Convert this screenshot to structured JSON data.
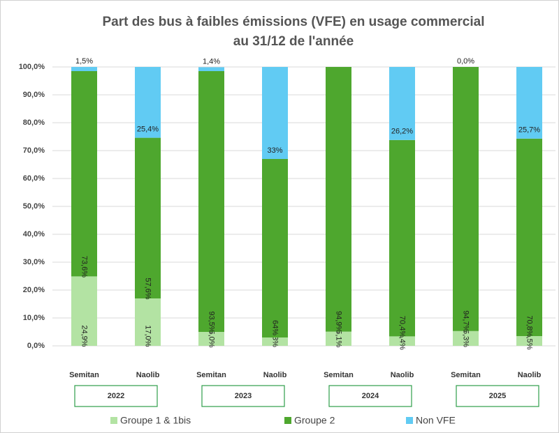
{
  "chart_data": {
    "type": "stacked_bar",
    "title": [
      "Part des bus à faibles émissions (VFE) en usage commercial",
      "au 31/12 de l'année"
    ],
    "categories": [
      "Semitan",
      "Naolib",
      "Semitan",
      "Naolib",
      "Semitan",
      "Naolib",
      "Semitan",
      "Naolib"
    ],
    "groups": [
      "2022",
      "2023",
      "2024",
      "2025"
    ],
    "series": [
      {
        "name": "Groupe 1 & 1bis",
        "color": "#b3e3a3",
        "values": [
          24.9,
          17.0,
          5.0,
          3,
          5.1,
          3.4,
          5.3,
          3.5
        ],
        "value_labels": [
          "24,9%",
          "17,0%",
          "5,0%",
          "3%",
          "5,1%",
          "3,4%",
          "5,3%",
          "3,5%"
        ]
      },
      {
        "name": "Groupe 2",
        "color": "#4ea72e",
        "values": [
          73.6,
          57.6,
          93.5,
          64,
          94.9,
          70.4,
          94.7,
          70.8
        ],
        "value_labels": [
          "73,6%",
          "57,6%",
          "93,5%",
          "64%",
          "94,9%",
          "70,4%",
          "94,7%",
          "70,8%"
        ]
      },
      {
        "name": "Non VFE",
        "color": "#61cbf3",
        "values": [
          1.5,
          25.4,
          1.4,
          33,
          0,
          26.2,
          0.0,
          25.7
        ],
        "value_labels": [
          "1,5%",
          "25,4%",
          "1,4%",
          "33%",
          null,
          "26,2%",
          "0,0%",
          "25,7%"
        ]
      }
    ],
    "ylim": [
      0,
      100
    ],
    "yticks": [
      {
        "value": 0,
        "label": "0,0%"
      },
      {
        "value": 10,
        "label": "10,0%"
      },
      {
        "value": 20,
        "label": "20,0%"
      },
      {
        "value": 30,
        "label": "30,0%"
      },
      {
        "value": 40,
        "label": "40,0%"
      },
      {
        "value": 50,
        "label": "50,0%"
      },
      {
        "value": 60,
        "label": "60,0%"
      },
      {
        "value": 70,
        "label": "70,0%"
      },
      {
        "value": 80,
        "label": "80,0%"
      },
      {
        "value": 90,
        "label": "90,0%"
      },
      {
        "value": 100,
        "label": "100,0%"
      }
    ],
    "grid": true
  }
}
